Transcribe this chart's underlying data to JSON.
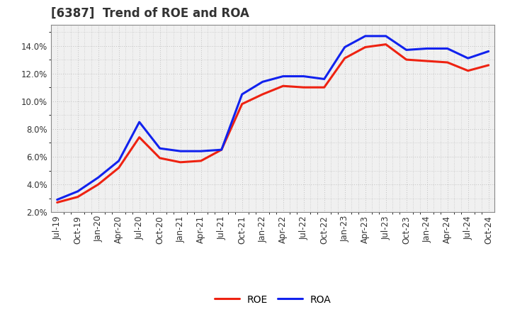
{
  "title": "[6387]  Trend of ROE and ROA",
  "title_fontsize": 12,
  "title_color": "#333333",
  "background_color": "#ffffff",
  "plot_background": "#f0f0f0",
  "grid_color": "#999999",
  "x_labels": [
    "Jul-19",
    "Oct-19",
    "Jan-20",
    "Apr-20",
    "Jul-20",
    "Oct-20",
    "Jan-21",
    "Apr-21",
    "Jul-21",
    "Oct-21",
    "Jan-22",
    "Apr-22",
    "Jul-22",
    "Oct-22",
    "Jan-23",
    "Apr-23",
    "Jul-23",
    "Oct-23",
    "Jan-24",
    "Apr-24",
    "Jul-24",
    "Oct-24"
  ],
  "ROE": [
    2.7,
    3.1,
    4.0,
    5.2,
    7.4,
    5.9,
    5.6,
    5.7,
    6.5,
    9.8,
    10.5,
    11.1,
    11.0,
    11.0,
    13.1,
    13.9,
    14.1,
    13.0,
    12.9,
    12.8,
    12.2,
    12.6
  ],
  "ROA": [
    2.9,
    3.5,
    4.5,
    5.7,
    8.5,
    6.6,
    6.4,
    6.4,
    6.5,
    10.5,
    11.4,
    11.8,
    11.8,
    11.6,
    13.9,
    14.7,
    14.7,
    13.7,
    13.8,
    13.8,
    13.1,
    13.6
  ],
  "ROE_color": "#ee2211",
  "ROA_color": "#1122ee",
  "ylim": [
    2.0,
    15.5
  ],
  "yticks": [
    2.0,
    4.0,
    6.0,
    8.0,
    10.0,
    12.0,
    14.0
  ],
  "line_width": 2.2,
  "legend_fontsize": 10,
  "tick_fontsize": 8.5
}
